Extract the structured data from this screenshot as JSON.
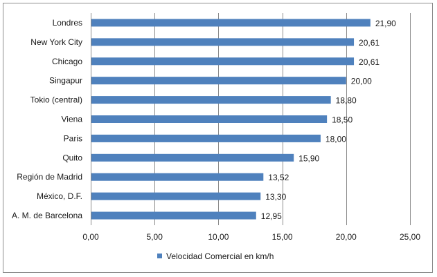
{
  "chart_data": {
    "type": "bar",
    "orientation": "horizontal",
    "title": "",
    "xlabel": "",
    "ylabel": "",
    "categories": [
      "Londres",
      "New York City",
      "Chicago",
      "Singapur",
      "Tokio (central)",
      "Viena",
      "Paris",
      "Quito",
      "Región de Madrid",
      "México, D.F.",
      "A. M. de Barcelona"
    ],
    "series": [
      {
        "name": "Velocidad Comercial en km/h",
        "color": "#4f81bd",
        "values": [
          21.9,
          20.61,
          20.61,
          20.0,
          18.8,
          18.5,
          18.0,
          15.9,
          13.52,
          13.3,
          12.95
        ],
        "value_labels": [
          "21,90",
          "20,61",
          "20,61",
          "20,00",
          "18,80",
          "18,50",
          "18,00",
          "15,90",
          "13,52",
          "13,30",
          "12,95"
        ]
      }
    ],
    "xlim": [
      0,
      25
    ],
    "x_ticks": [
      0,
      5,
      10,
      15,
      20,
      25
    ],
    "x_tick_labels": [
      "0,00",
      "5,00",
      "10,00",
      "15,00",
      "20,00",
      "25,00"
    ],
    "grid": "vertical",
    "legend_position": "bottom"
  }
}
